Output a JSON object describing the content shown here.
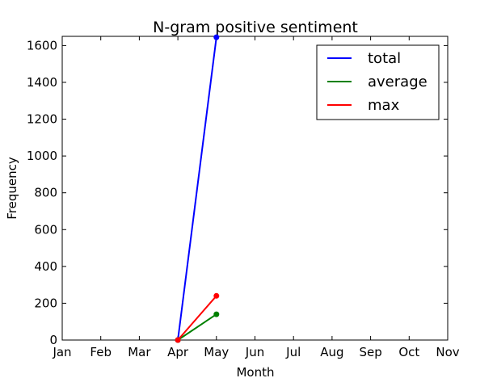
{
  "chart_data": {
    "type": "line",
    "title": "N-gram positive sentiment",
    "xlabel": "Month",
    "ylabel": "Frequency",
    "categories": [
      "Jan",
      "Feb",
      "Mar",
      "Apr",
      "May",
      "Jun",
      "Jul",
      "Aug",
      "Sep",
      "Oct",
      "Nov"
    ],
    "ylim": [
      0,
      1650
    ],
    "yticks": [
      0,
      200,
      400,
      600,
      800,
      1000,
      1200,
      1400,
      1600
    ],
    "grid": false,
    "legend_position": "top-right",
    "series": [
      {
        "name": "total",
        "color": "#0000ff",
        "points": [
          [
            "Apr",
            0
          ],
          [
            "May",
            1645
          ]
        ]
      },
      {
        "name": "average",
        "color": "#008000",
        "points": [
          [
            "Apr",
            0
          ],
          [
            "May",
            140
          ]
        ]
      },
      {
        "name": "max",
        "color": "#ff0000",
        "points": [
          [
            "Apr",
            0
          ],
          [
            "May",
            240
          ]
        ]
      }
    ]
  }
}
